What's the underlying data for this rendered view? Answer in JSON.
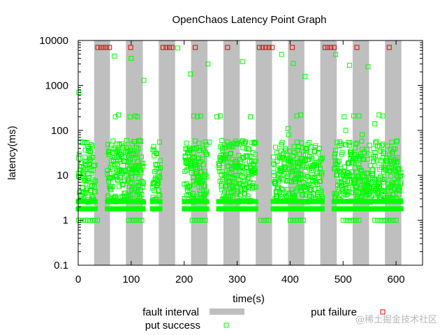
{
  "chart_data": {
    "type": "scatter",
    "title": "OpenChaos Latency Point Graph",
    "xlabel": "time(s)",
    "ylabel": "latency(ms)",
    "xlim": [
      0,
      650
    ],
    "ylim": [
      0.1,
      10000
    ],
    "yscale": "log",
    "x_ticks": [
      0,
      100,
      200,
      300,
      400,
      500,
      600
    ],
    "x_tick_labels": [
      "0",
      "100",
      "200",
      "300",
      "400",
      "500",
      "600"
    ],
    "y_ticks": [
      0.1,
      1,
      10,
      100,
      1000,
      10000
    ],
    "y_tick_labels": [
      "0.1",
      "1",
      "10",
      "100",
      "1000",
      "10000"
    ],
    "grid": false,
    "legend_placement": "bottom",
    "fault_intervals": [
      [
        30,
        60
      ],
      [
        90,
        122
      ],
      [
        152,
        183
      ],
      [
        213,
        244
      ],
      [
        274,
        305
      ],
      [
        335,
        366
      ],
      [
        396,
        427
      ],
      [
        457,
        488
      ],
      [
        518,
        549
      ],
      [
        579,
        610
      ]
    ],
    "put_success_ranges": [
      [
        0,
        33
      ],
      [
        55,
        123
      ],
      [
        140,
        155
      ],
      [
        200,
        243
      ],
      [
        265,
        336
      ],
      [
        368,
        461
      ],
      [
        483,
        609
      ]
    ],
    "put_success_dense_band": [
      2.5,
      30
    ],
    "put_success_peak_band": [
      30,
      60
    ],
    "put_success_floor_levels": [
      1.8,
      2.6
    ],
    "put_success_low_outliers": [
      [
        0.8,
        1
      ],
      [
        4.5,
        1
      ],
      [
        9.1,
        1
      ],
      [
        13.6,
        1
      ],
      [
        18.2,
        1
      ],
      [
        22.7,
        1
      ],
      [
        27.3,
        1
      ],
      [
        31.8,
        1
      ],
      [
        36.4,
        1
      ],
      [
        95,
        1
      ],
      [
        100,
        1
      ],
      [
        105,
        1
      ],
      [
        110,
        1
      ],
      [
        115,
        1
      ],
      [
        120,
        1
      ],
      [
        215,
        1
      ],
      [
        220,
        1
      ],
      [
        225,
        1
      ],
      [
        230,
        1
      ],
      [
        235,
        1
      ],
      [
        240,
        1
      ],
      [
        345,
        1
      ],
      [
        350,
        1
      ],
      [
        355,
        1
      ],
      [
        360,
        1
      ],
      [
        400,
        1
      ],
      [
        405,
        1
      ],
      [
        410,
        1
      ],
      [
        415,
        1
      ],
      [
        420,
        1
      ],
      [
        425,
        1
      ],
      [
        500,
        1
      ],
      [
        505,
        1
      ],
      [
        510,
        1
      ],
      [
        515,
        1
      ],
      [
        520,
        1
      ],
      [
        525,
        1
      ],
      [
        530,
        1
      ],
      [
        560,
        1
      ],
      [
        565,
        1
      ],
      [
        570,
        1
      ],
      [
        575,
        1
      ],
      [
        580,
        1
      ],
      [
        585,
        1
      ],
      [
        590,
        1
      ],
      [
        595,
        1
      ],
      [
        600,
        1
      ]
    ],
    "put_success_high_outliers": [
      [
        1,
        700
      ],
      [
        12,
        55
      ],
      [
        20,
        40
      ],
      [
        27,
        45
      ],
      [
        68,
        4500
      ],
      [
        70,
        200
      ],
      [
        76,
        220
      ],
      [
        98,
        200
      ],
      [
        100,
        4000
      ],
      [
        108,
        210
      ],
      [
        112,
        200
      ],
      [
        124,
        1300
      ],
      [
        115,
        60
      ],
      [
        188,
        6800
      ],
      [
        212,
        1800
      ],
      [
        218,
        210
      ],
      [
        225,
        200
      ],
      [
        231,
        210
      ],
      [
        245,
        3000
      ],
      [
        262,
        200
      ],
      [
        268,
        210
      ],
      [
        248,
        55
      ],
      [
        285,
        45
      ],
      [
        300,
        50
      ],
      [
        310,
        3400
      ],
      [
        325,
        200
      ],
      [
        384,
        4900
      ],
      [
        406,
        3100
      ],
      [
        413,
        210
      ],
      [
        420,
        220
      ],
      [
        428,
        1600
      ],
      [
        396,
        110
      ],
      [
        397,
        80
      ],
      [
        486,
        4900
      ],
      [
        502,
        200
      ],
      [
        505,
        100
      ],
      [
        512,
        2800
      ],
      [
        520,
        210
      ],
      [
        530,
        210
      ],
      [
        536,
        80
      ],
      [
        547,
        2600
      ],
      [
        560,
        140
      ],
      [
        568,
        220
      ],
      [
        575,
        210
      ]
    ],
    "put_failure_points": [
      [
        37,
        7000
      ],
      [
        43,
        7000
      ],
      [
        48,
        7000
      ],
      [
        53,
        7000
      ],
      [
        59,
        7000
      ],
      [
        99,
        7000
      ],
      [
        160,
        7000
      ],
      [
        166,
        7000
      ],
      [
        172,
        7000
      ],
      [
        177,
        7000
      ],
      [
        221,
        7000
      ],
      [
        282,
        7000
      ],
      [
        342,
        7000
      ],
      [
        348,
        7000
      ],
      [
        354,
        7000
      ],
      [
        360,
        7000
      ],
      [
        366,
        7000
      ],
      [
        404,
        7000
      ],
      [
        466,
        7000
      ],
      [
        471,
        7000
      ],
      [
        477,
        7000
      ],
      [
        483,
        7000
      ],
      [
        526,
        7000
      ],
      [
        587,
        7000
      ]
    ],
    "legend": [
      {
        "label": "fault interval",
        "kind": "fault"
      },
      {
        "label": "put success",
        "kind": "success"
      },
      {
        "label": "put failure",
        "kind": "failure"
      }
    ],
    "colors": {
      "fault_interval": "#bfbfbf",
      "put_success": "#00ff00",
      "put_failure": "#e00000",
      "axis": "#000000"
    }
  },
  "watermark": "@稀土掘金技术社区"
}
